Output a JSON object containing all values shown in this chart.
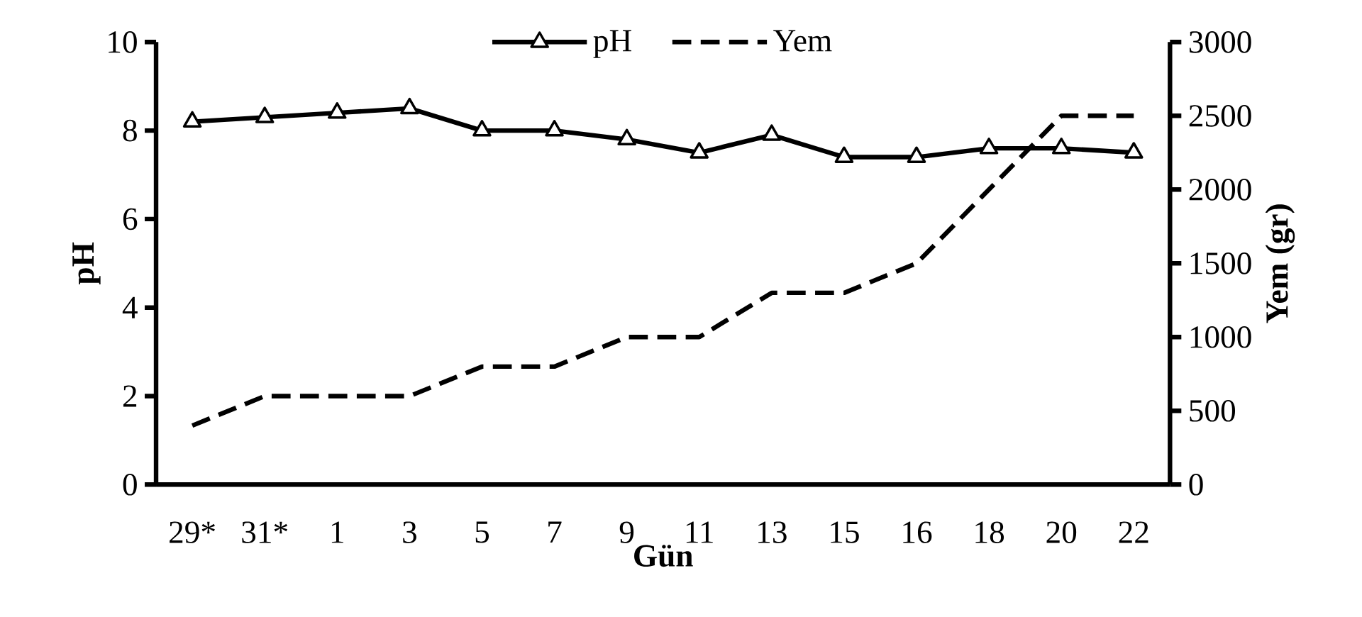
{
  "chart_data": {
    "type": "line",
    "xlabel": "Gün",
    "ylabel": "pH",
    "y2label": "Yem (gr)",
    "categories": [
      "29*",
      "31*",
      "1",
      "3",
      "5",
      "7",
      "9",
      "11",
      "13",
      "15",
      "16",
      "18",
      "20",
      "22"
    ],
    "series": [
      {
        "name": "pH",
        "color": "#000000",
        "marker": "triangle",
        "line_style": "solid",
        "values": [
          8.2,
          8.3,
          8.4,
          8.5,
          8.0,
          8.0,
          7.8,
          7.5,
          7.9,
          7.4,
          7.4,
          7.6,
          7.6,
          7.5
        ]
      },
      {
        "name": "Yem",
        "color": "#000000",
        "marker": "none",
        "line_style": "dashed",
        "axis": "y2",
        "values": [
          400,
          600,
          600,
          600,
          800,
          800,
          1000,
          1000,
          1300,
          1300,
          1500,
          2000,
          2500,
          2500
        ]
      }
    ],
    "ylim": [
      0,
      10
    ],
    "yticks": [
      0,
      2,
      4,
      6,
      8,
      10
    ],
    "y2lim": [
      0,
      3000
    ],
    "y2ticks": [
      0,
      500,
      1000,
      1500,
      2000,
      2500,
      3000
    ],
    "grid": false,
    "legend": "top"
  }
}
